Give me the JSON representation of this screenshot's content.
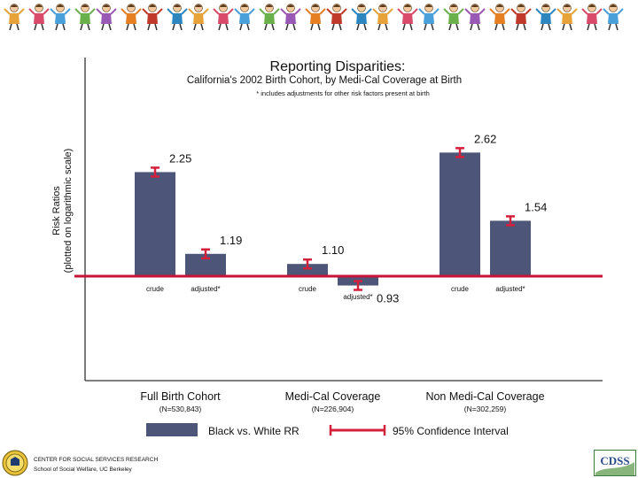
{
  "chart_data": {
    "type": "bar",
    "title": "Reporting Disparities:",
    "subtitle": "California's 2002 Birth Cohort, by Medi-Cal Coverage at Birth",
    "note": "* includes adjustments for other risk factors present at birth",
    "ylabel_line1": "Risk Ratios",
    "ylabel_line2": "(plotted on logarithmic scale)",
    "yscale": "log",
    "reference_value": 1.0,
    "groups": [
      {
        "label": "Full Birth Cohort",
        "n_label": "(N=530,843)",
        "bars": [
          {
            "label": "crude",
            "value": 2.25,
            "value_label": "2.25"
          },
          {
            "label": "adjusted*",
            "value": 1.19,
            "value_label": "1.19"
          }
        ]
      },
      {
        "label": "Medi-Cal Coverage",
        "n_label": "(N=226,904)",
        "bars": [
          {
            "label": "crude",
            "value": 1.1,
            "value_label": "1.10"
          },
          {
            "label": "adjusted*",
            "value": 0.93,
            "value_label": "0.93"
          }
        ]
      },
      {
        "label": "Non Medi-Cal Coverage",
        "n_label": "(N=302,259)",
        "bars": [
          {
            "label": "crude",
            "value": 2.62,
            "value_label": "2.62"
          },
          {
            "label": "adjusted*",
            "value": 1.54,
            "value_label": "1.54"
          }
        ]
      }
    ],
    "legend": {
      "bar_label": "Black vs. White RR",
      "ci_label": "95% Confidence Interval"
    },
    "colors": {
      "bar": "#4d5678",
      "ci": "#d4213b",
      "reference": "#c8143a"
    }
  },
  "footer": {
    "org_line1": "CENTER FOR SOCIAL SERVICES RESEARCH",
    "org_line2": "School of Social Welfare, UC Berkeley",
    "logo_text": "CDSS"
  }
}
